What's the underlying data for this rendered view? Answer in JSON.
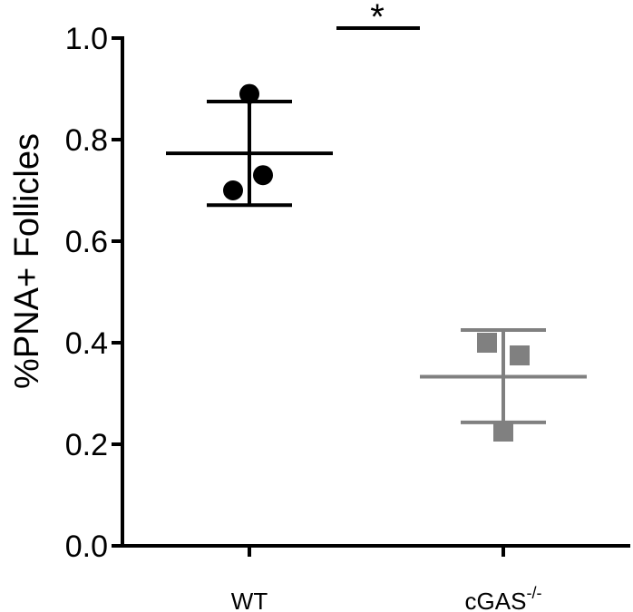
{
  "chart_data": {
    "type": "scatter",
    "ylabel": "%PNA+ Follicles",
    "xlabel": "",
    "ylim": [
      0.0,
      1.0
    ],
    "yticks": [
      "0.0",
      "0.2",
      "0.4",
      "0.6",
      "0.8",
      "1.0"
    ],
    "categories": [
      "WT",
      "cGAS"
    ],
    "category_superscripts": [
      "",
      "-/-"
    ],
    "series": [
      {
        "category": "WT",
        "color": "#000000",
        "marker": "circle",
        "points": [
          0.89,
          0.73,
          0.7
        ],
        "mean": 0.773,
        "sd_upper": 0.875,
        "sd_lower": 0.671
      },
      {
        "category": "cGAS",
        "color": "#808080",
        "marker": "square",
        "points": [
          0.4,
          0.375,
          0.225
        ],
        "mean": 0.333,
        "sd_upper": 0.425,
        "sd_lower": 0.243
      }
    ],
    "annotations": [
      {
        "text": "*"
      }
    ],
    "grid": false,
    "legend": "none"
  }
}
